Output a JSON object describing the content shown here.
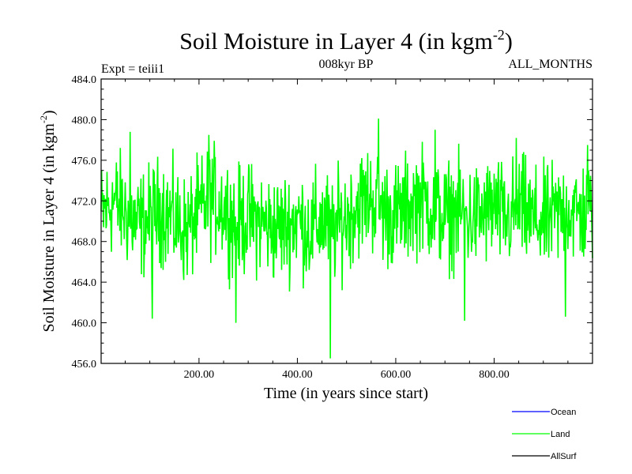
{
  "chart_data": {
    "type": "line",
    "title": "Soil Moisture in Layer 4 (in kgm",
    "title_sup": "-2",
    "title_close": ")",
    "subtitle_left": "Expt = teiii1",
    "subtitle_center": "008kyr BP",
    "subtitle_right": "ALL_MONTHS",
    "xlabel": "Time (in years since start)",
    "ylabel": "Soil Moisture in Layer 4 (in kgm",
    "ylabel_sup": "-2",
    "ylabel_close": ")",
    "xlim": [
      1,
      1000
    ],
    "ylim": [
      456.0,
      484.0
    ],
    "xticks": [
      200,
      400,
      600,
      800
    ],
    "xtick_labels": [
      "200.00",
      "400.00",
      "600.00",
      "800.00"
    ],
    "yticks": [
      456,
      460,
      464,
      468,
      472,
      476,
      480,
      484
    ],
    "ytick_labels": [
      "456.0",
      "460.0",
      "464.0",
      "468.0",
      "472.0",
      "476.0",
      "480.0",
      "484.0"
    ],
    "grid": false,
    "legend_position": "bottom-right, below plot",
    "series": [
      {
        "name": "Ocean",
        "color": "#0000ff",
        "x": [],
        "values": []
      },
      {
        "name": "Land",
        "color": "#00ff00",
        "mean": 470.6,
        "x": [
          1,
          25,
          50,
          75,
          100,
          125,
          150,
          175,
          200,
          225,
          250,
          275,
          300,
          325,
          350,
          375,
          400,
          425,
          450,
          475,
          500,
          525,
          550,
          575,
          600,
          625,
          650,
          675,
          700,
          725,
          750,
          775,
          800,
          825,
          850,
          875,
          900,
          925,
          950,
          975,
          1000
        ],
        "values": [
          470.5,
          472.0,
          471.0,
          469.5,
          470.2,
          471.3,
          470.0,
          469.0,
          470.8,
          472.2,
          471.5,
          469.8,
          470.3,
          470.0,
          469.2,
          469.5,
          470.3,
          469.0,
          470.1,
          469.2,
          470.4,
          471.8,
          472.3,
          471.0,
          470.5,
          471.3,
          472.4,
          471.2,
          470.4,
          471.0,
          470.2,
          470.6,
          471.3,
          470.0,
          471.5,
          470.2,
          469.8,
          470.5,
          471.2,
          470.6,
          471.0
        ],
        "highs": [
          {
            "x": 60,
            "y": 478.8
          },
          {
            "x": 220,
            "y": 478.5
          },
          {
            "x": 565,
            "y": 480.1
          },
          {
            "x": 680,
            "y": 479.0
          },
          {
            "x": 845,
            "y": 478.2
          },
          {
            "x": 990,
            "y": 477.5
          }
        ],
        "lows": [
          {
            "x": 105,
            "y": 460.4
          },
          {
            "x": 275,
            "y": 460.0
          },
          {
            "x": 467,
            "y": 456.5
          },
          {
            "x": 740,
            "y": 460.2
          },
          {
            "x": 945,
            "y": 460.6
          }
        ]
      },
      {
        "name": "AllSurf",
        "color": "#000000",
        "x": [],
        "values": []
      }
    ]
  }
}
